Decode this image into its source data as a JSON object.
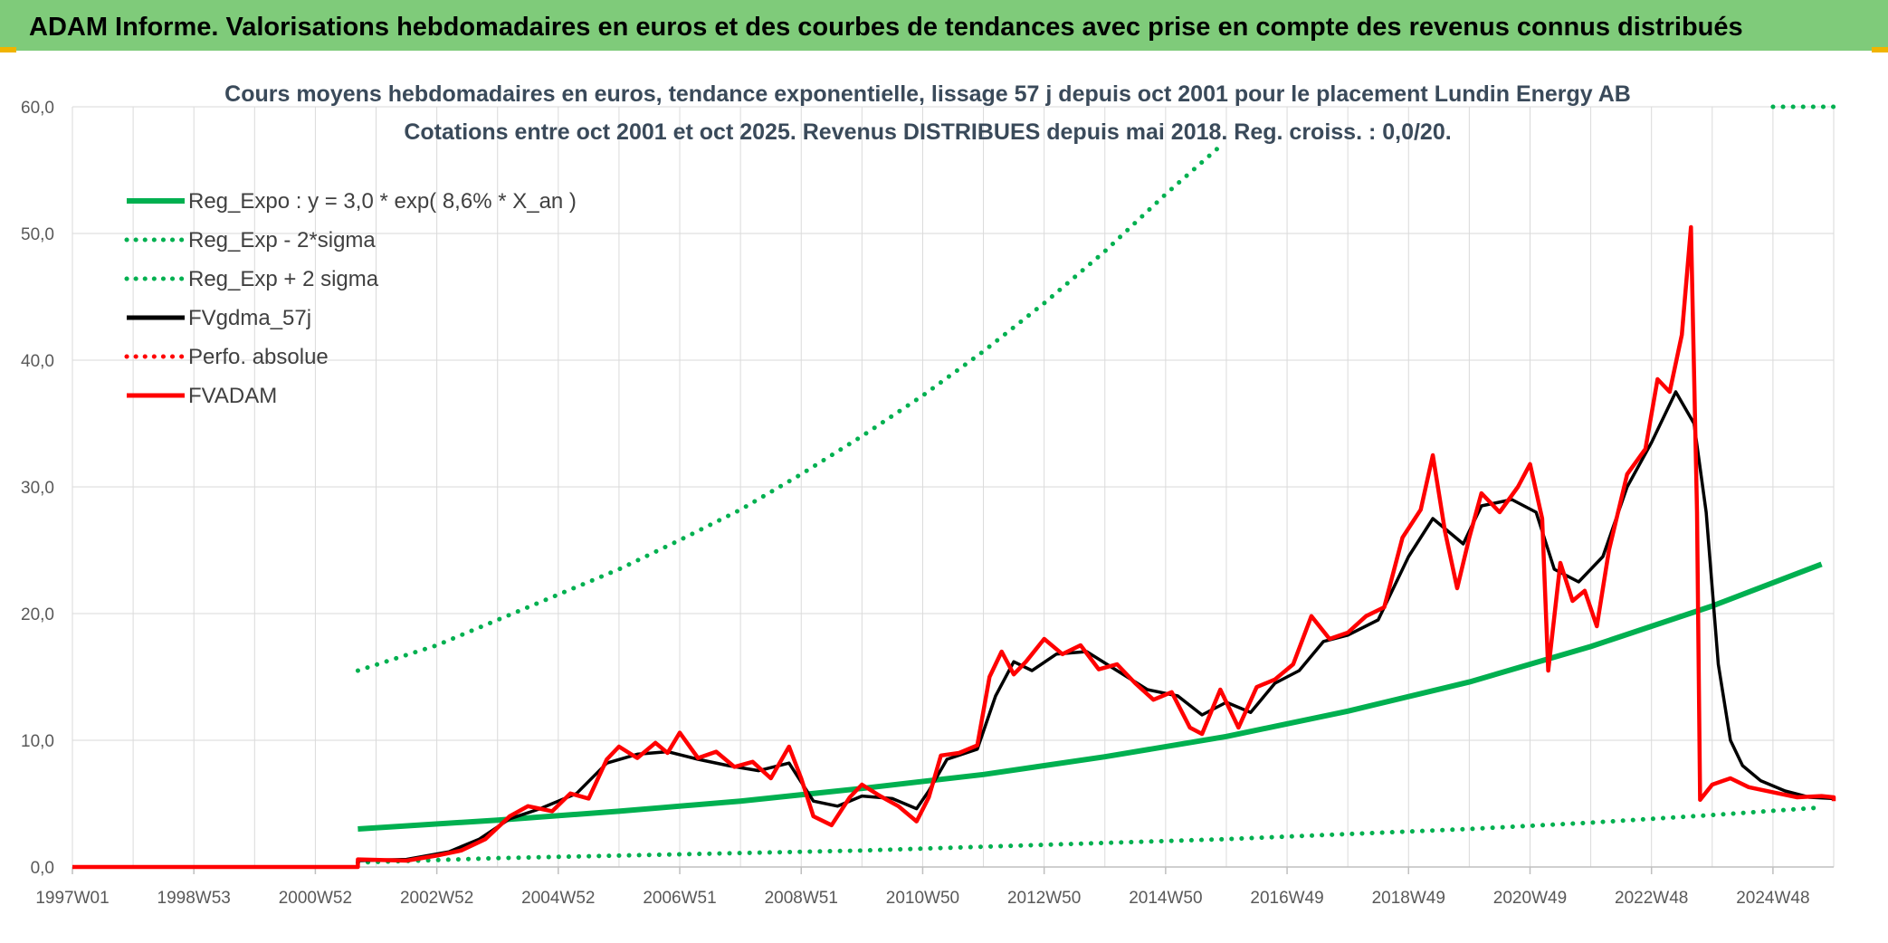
{
  "banner": {
    "text": "ADAM Informe. Valorisations hebdomadaires en euros et des courbes de tendances avec prise en compte des revenus connus distribués",
    "color": "#7FCB7A"
  },
  "chart_data": {
    "type": "line",
    "title": "Cours moyens hebdomadaires en euros, tendance exponentielle, lissage 57 j depuis oct 2001 pour le placement Lundin Energy AB",
    "subtitle": "Cotations entre oct 2001 et oct 2025. Revenus DISTRIBUES depuis mai 2018. Reg. croiss. : 0,0/20.",
    "xlabel": "",
    "ylabel": "",
    "xlim": [
      1997.0,
      2026.0
    ],
    "ylim": [
      0,
      60
    ],
    "grid": true,
    "legend_position": "top-left",
    "x_ticks": [
      {
        "x": 1997.0,
        "label": "1997W01"
      },
      {
        "x": 1999.0,
        "label": "1998W53"
      },
      {
        "x": 2001.0,
        "label": "2000W52"
      },
      {
        "x": 2003.0,
        "label": "2002W52"
      },
      {
        "x": 2005.0,
        "label": "2004W52"
      },
      {
        "x": 2007.0,
        "label": "2006W51"
      },
      {
        "x": 2009.0,
        "label": "2008W51"
      },
      {
        "x": 2011.0,
        "label": "2010W50"
      },
      {
        "x": 2013.0,
        "label": "2012W50"
      },
      {
        "x": 2015.0,
        "label": "2014W50"
      },
      {
        "x": 2017.0,
        "label": "2016W49"
      },
      {
        "x": 2019.0,
        "label": "2018W49"
      },
      {
        "x": 2021.0,
        "label": "2020W49"
      },
      {
        "x": 2023.0,
        "label": "2022W48"
      },
      {
        "x": 2025.0,
        "label": "2024W48"
      }
    ],
    "y_ticks": [
      {
        "y": 0,
        "label": "0,0"
      },
      {
        "y": 10,
        "label": "10,0"
      },
      {
        "y": 20,
        "label": "20,0"
      },
      {
        "y": 30,
        "label": "30,0"
      },
      {
        "y": 40,
        "label": "40,0"
      },
      {
        "y": 50,
        "label": "50,0"
      },
      {
        "y": 60,
        "label": "60,0"
      }
    ],
    "series": [
      {
        "name": "Reg_Expo : y = 3,0 * exp( 8,6% *  X_an )",
        "color": "#00B050",
        "style": "solid",
        "width": 6,
        "points": [
          [
            2001.7,
            3.0
          ],
          [
            2004,
            3.7
          ],
          [
            2006,
            4.4
          ],
          [
            2008,
            5.2
          ],
          [
            2010,
            6.2
          ],
          [
            2012,
            7.3
          ],
          [
            2014,
            8.7
          ],
          [
            2016,
            10.3
          ],
          [
            2018,
            12.3
          ],
          [
            2020,
            14.6
          ],
          [
            2022,
            17.4
          ],
          [
            2024,
            20.6
          ],
          [
            2025.8,
            23.9
          ]
        ]
      },
      {
        "name": "Reg_Exp - 2*sigma",
        "color": "#00B050",
        "style": "dotted",
        "width": 5,
        "points": [
          [
            2001.7,
            0.35
          ],
          [
            2004,
            0.7
          ],
          [
            2006,
            0.9
          ],
          [
            2008,
            1.1
          ],
          [
            2010,
            1.3
          ],
          [
            2012,
            1.6
          ],
          [
            2014,
            1.9
          ],
          [
            2016,
            2.2
          ],
          [
            2018,
            2.6
          ],
          [
            2020,
            3.0
          ],
          [
            2022,
            3.5
          ],
          [
            2024,
            4.1
          ],
          [
            2025.8,
            4.7
          ]
        ]
      },
      {
        "name": "Reg_Exp + 2 sigma",
        "color": "#00B050",
        "style": "dotted",
        "width": 5,
        "points": [
          [
            2001.7,
            15.5
          ],
          [
            2003,
            17.5
          ],
          [
            2004,
            19.5
          ],
          [
            2005,
            21.5
          ],
          [
            2006,
            23.5
          ],
          [
            2007,
            25.8
          ],
          [
            2008,
            28.2
          ],
          [
            2009,
            31.0
          ],
          [
            2010,
            34.0
          ],
          [
            2011,
            37.2
          ],
          [
            2012,
            40.7
          ],
          [
            2013,
            44.5
          ],
          [
            2014,
            48.6
          ],
          [
            2015,
            53.1
          ],
          [
            2015.9,
            56.9
          ]
        ]
      },
      {
        "name": "FVgdma_57j",
        "color": "#000000",
        "style": "solid",
        "width": 3.5,
        "points": [
          [
            1997.0,
            0
          ],
          [
            2001.7,
            0
          ],
          [
            2001.7,
            0.5
          ],
          [
            2002.5,
            0.6
          ],
          [
            2003.2,
            1.2
          ],
          [
            2003.7,
            2.2
          ],
          [
            2004.2,
            3.8
          ],
          [
            2004.7,
            4.6
          ],
          [
            2005.3,
            5.8
          ],
          [
            2005.8,
            8.2
          ],
          [
            2006.3,
            8.9
          ],
          [
            2006.8,
            9.1
          ],
          [
            2007.3,
            8.5
          ],
          [
            2007.8,
            8.0
          ],
          [
            2008.3,
            7.6
          ],
          [
            2008.8,
            8.2
          ],
          [
            2009.2,
            5.2
          ],
          [
            2009.6,
            4.8
          ],
          [
            2010.0,
            5.6
          ],
          [
            2010.5,
            5.4
          ],
          [
            2010.9,
            4.6
          ],
          [
            2011.1,
            6.0
          ],
          [
            2011.4,
            8.5
          ],
          [
            2011.9,
            9.3
          ],
          [
            2012.2,
            13.5
          ],
          [
            2012.5,
            16.2
          ],
          [
            2012.8,
            15.5
          ],
          [
            2013.2,
            16.8
          ],
          [
            2013.7,
            17.0
          ],
          [
            2014.2,
            15.5
          ],
          [
            2014.7,
            14.0
          ],
          [
            2015.2,
            13.5
          ],
          [
            2015.6,
            12.0
          ],
          [
            2016.0,
            13.0
          ],
          [
            2016.4,
            12.2
          ],
          [
            2016.8,
            14.5
          ],
          [
            2017.2,
            15.5
          ],
          [
            2017.6,
            17.8
          ],
          [
            2018.0,
            18.3
          ],
          [
            2018.5,
            19.5
          ],
          [
            2019.0,
            24.5
          ],
          [
            2019.4,
            27.5
          ],
          [
            2019.9,
            25.5
          ],
          [
            2020.2,
            28.5
          ],
          [
            2020.7,
            29.0
          ],
          [
            2021.1,
            28.0
          ],
          [
            2021.4,
            23.5
          ],
          [
            2021.8,
            22.5
          ],
          [
            2022.2,
            24.5
          ],
          [
            2022.6,
            30.0
          ],
          [
            2023.0,
            33.5
          ],
          [
            2023.4,
            37.5
          ],
          [
            2023.7,
            35.0
          ],
          [
            2023.9,
            28.0
          ],
          [
            2024.1,
            16.0
          ],
          [
            2024.3,
            10.0
          ],
          [
            2024.5,
            8.0
          ],
          [
            2024.8,
            6.8
          ],
          [
            2025.2,
            6.0
          ],
          [
            2025.6,
            5.5
          ],
          [
            2026.0,
            5.4
          ],
          [
            2026.5,
            5.5
          ],
          [
            2027.0,
            5.3
          ]
        ]
      },
      {
        "name": "Perfo. absolue",
        "color": "#FF0000",
        "style": "dotted",
        "width": 3,
        "points": []
      },
      {
        "name": "FVADAM",
        "color": "#FF0000",
        "style": "solid",
        "width": 4.5,
        "points": [
          [
            1997.0,
            0
          ],
          [
            2001.7,
            0
          ],
          [
            2001.7,
            0.6
          ],
          [
            2002.5,
            0.5
          ],
          [
            2003.0,
            0.9
          ],
          [
            2003.4,
            1.3
          ],
          [
            2003.8,
            2.2
          ],
          [
            2004.2,
            4.0
          ],
          [
            2004.5,
            4.8
          ],
          [
            2004.9,
            4.4
          ],
          [
            2005.2,
            5.8
          ],
          [
            2005.5,
            5.4
          ],
          [
            2005.8,
            8.5
          ],
          [
            2006.0,
            9.5
          ],
          [
            2006.3,
            8.6
          ],
          [
            2006.6,
            9.8
          ],
          [
            2006.8,
            9.0
          ],
          [
            2007.0,
            10.6
          ],
          [
            2007.3,
            8.6
          ],
          [
            2007.6,
            9.1
          ],
          [
            2007.9,
            7.9
          ],
          [
            2008.2,
            8.3
          ],
          [
            2008.5,
            7.0
          ],
          [
            2008.8,
            9.5
          ],
          [
            2009.0,
            7.0
          ],
          [
            2009.2,
            4.0
          ],
          [
            2009.5,
            3.3
          ],
          [
            2009.8,
            5.5
          ],
          [
            2010.0,
            6.5
          ],
          [
            2010.3,
            5.6
          ],
          [
            2010.6,
            4.8
          ],
          [
            2010.9,
            3.6
          ],
          [
            2011.1,
            5.5
          ],
          [
            2011.3,
            8.8
          ],
          [
            2011.6,
            9.0
          ],
          [
            2011.9,
            9.6
          ],
          [
            2012.1,
            15.0
          ],
          [
            2012.3,
            17.0
          ],
          [
            2012.5,
            15.2
          ],
          [
            2012.7,
            16.2
          ],
          [
            2013.0,
            18.0
          ],
          [
            2013.3,
            16.8
          ],
          [
            2013.6,
            17.5
          ],
          [
            2013.9,
            15.6
          ],
          [
            2014.2,
            16.0
          ],
          [
            2014.5,
            14.5
          ],
          [
            2014.8,
            13.2
          ],
          [
            2015.1,
            13.8
          ],
          [
            2015.4,
            11.0
          ],
          [
            2015.6,
            10.5
          ],
          [
            2015.9,
            14.0
          ],
          [
            2016.2,
            11.0
          ],
          [
            2016.5,
            14.2
          ],
          [
            2016.8,
            14.8
          ],
          [
            2017.1,
            16.0
          ],
          [
            2017.4,
            19.8
          ],
          [
            2017.7,
            18.0
          ],
          [
            2018.0,
            18.5
          ],
          [
            2018.3,
            19.8
          ],
          [
            2018.6,
            20.5
          ],
          [
            2018.9,
            26.0
          ],
          [
            2019.2,
            28.2
          ],
          [
            2019.4,
            32.5
          ],
          [
            2019.6,
            26.5
          ],
          [
            2019.8,
            22.0
          ],
          [
            2020.0,
            26.0
          ],
          [
            2020.2,
            29.5
          ],
          [
            2020.5,
            28.0
          ],
          [
            2020.8,
            30.0
          ],
          [
            2021.0,
            31.8
          ],
          [
            2021.2,
            27.5
          ],
          [
            2021.3,
            15.5
          ],
          [
            2021.5,
            24.0
          ],
          [
            2021.7,
            21.0
          ],
          [
            2021.9,
            21.8
          ],
          [
            2022.1,
            19.0
          ],
          [
            2022.3,
            25.0
          ],
          [
            2022.6,
            31.0
          ],
          [
            2022.9,
            33.0
          ],
          [
            2023.1,
            38.5
          ],
          [
            2023.3,
            37.5
          ],
          [
            2023.5,
            42.0
          ],
          [
            2023.65,
            50.5
          ],
          [
            2023.75,
            28.0
          ],
          [
            2023.8,
            5.3
          ],
          [
            2024.0,
            6.5
          ],
          [
            2024.3,
            7.0
          ],
          [
            2024.6,
            6.3
          ],
          [
            2025.0,
            5.9
          ],
          [
            2025.4,
            5.5
          ],
          [
            2025.8,
            5.6
          ],
          [
            2026.2,
            5.5
          ],
          [
            2026.6,
            5.4
          ],
          [
            2027.0,
            5.2
          ]
        ]
      }
    ]
  }
}
